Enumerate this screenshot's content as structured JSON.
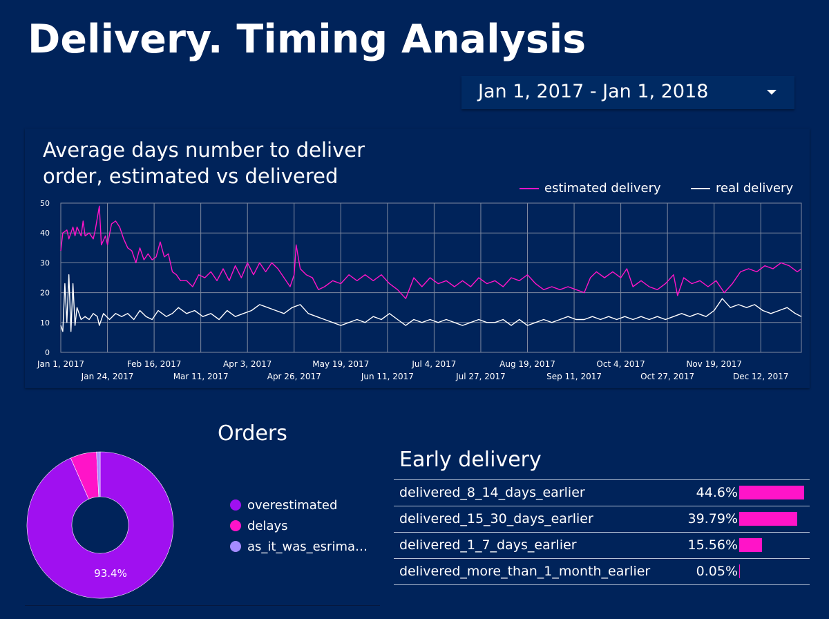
{
  "header": {
    "title": "Delivery. Timing Analysis"
  },
  "date_range": {
    "label": "Jan 1, 2017 - Jan 1, 2018"
  },
  "line_chart": {
    "title": "Average days number to deliver order, estimated vs delivered",
    "legend": [
      {
        "label": "estimated delivery",
        "color": "#ff14c8"
      },
      {
        "label": "real delivery",
        "color": "#ffffff"
      }
    ]
  },
  "pie_chart": {
    "title": "Orders",
    "center_label": "93.4%",
    "legend": [
      {
        "label": "overestimated",
        "color": "#a010f0"
      },
      {
        "label": "delays",
        "color": "#ff14c8"
      },
      {
        "label": "as_it_was_esrima…",
        "color": "#a58cff"
      }
    ]
  },
  "bar_table": {
    "title": "Early delivery",
    "rows": [
      {
        "label": "delivered_8_14_days_earlier",
        "value": "44.6%"
      },
      {
        "label": "delivered_15_30_days_earlier",
        "value": "39.79%"
      },
      {
        "label": "delivered_1_7_days_earlier",
        "value": "15.56%"
      },
      {
        "label": "delivered_more_than_1_month_earlier",
        "value": "0.05%"
      }
    ]
  },
  "chart_data": [
    {
      "type": "line",
      "title": "Average days number to deliver order, estimated vs delivered",
      "x_start": "2017-01-01",
      "x_end": "2018-01-01",
      "ylim": [
        0,
        50
      ],
      "yticks": [
        0,
        10,
        20,
        30,
        40,
        50
      ],
      "xticks": [
        "Jan 1, 2017",
        "Jan 24, 2017",
        "Feb 16, 2017",
        "Mar 11, 2017",
        "Apr 3, 2017",
        "Apr 26, 2017",
        "May 19, 2017",
        "Jun 11, 2017",
        "Jul 4, 2017",
        "Jul 27, 2017",
        "Aug 19, 2017",
        "Sep 11, 2017",
        "Oct 4, 2017",
        "Oct 27, 2017",
        "Nov 19, 2017",
        "Dec 12, 2017"
      ],
      "grid": true,
      "legend_position": "top-right",
      "series": [
        {
          "name": "estimated delivery",
          "color": "#ff14c8",
          "points": [
            [
              "2017-01-01",
              34
            ],
            [
              "2017-01-02",
              40
            ],
            [
              "2017-01-04",
              41
            ],
            [
              "2017-01-05",
              38
            ],
            [
              "2017-01-07",
              42
            ],
            [
              "2017-01-08",
              39
            ],
            [
              "2017-01-09",
              42
            ],
            [
              "2017-01-11",
              39
            ],
            [
              "2017-01-12",
              44
            ],
            [
              "2017-01-13",
              39
            ],
            [
              "2017-01-15",
              40
            ],
            [
              "2017-01-17",
              38
            ],
            [
              "2017-01-18",
              41
            ],
            [
              "2017-01-20",
              49
            ],
            [
              "2017-01-21",
              36
            ],
            [
              "2017-01-23",
              39
            ],
            [
              "2017-01-24",
              36
            ],
            [
              "2017-01-26",
              43
            ],
            [
              "2017-01-28",
              44
            ],
            [
              "2017-01-30",
              42
            ],
            [
              "2017-02-01",
              38
            ],
            [
              "2017-02-03",
              35
            ],
            [
              "2017-02-05",
              34
            ],
            [
              "2017-02-07",
              30
            ],
            [
              "2017-02-09",
              35
            ],
            [
              "2017-02-11",
              31
            ],
            [
              "2017-02-13",
              33
            ],
            [
              "2017-02-15",
              31
            ],
            [
              "2017-02-17",
              32
            ],
            [
              "2017-02-19",
              37
            ],
            [
              "2017-02-21",
              32
            ],
            [
              "2017-02-23",
              33
            ],
            [
              "2017-02-25",
              27
            ],
            [
              "2017-02-27",
              26
            ],
            [
              "2017-03-01",
              24
            ],
            [
              "2017-03-04",
              24
            ],
            [
              "2017-03-07",
              22
            ],
            [
              "2017-03-10",
              26
            ],
            [
              "2017-03-13",
              25
            ],
            [
              "2017-03-16",
              27
            ],
            [
              "2017-03-19",
              24
            ],
            [
              "2017-03-22",
              28
            ],
            [
              "2017-03-25",
              24
            ],
            [
              "2017-03-28",
              29
            ],
            [
              "2017-03-31",
              25
            ],
            [
              "2017-04-03",
              30
            ],
            [
              "2017-04-06",
              26
            ],
            [
              "2017-04-09",
              30
            ],
            [
              "2017-04-12",
              27
            ],
            [
              "2017-04-15",
              30
            ],
            [
              "2017-04-18",
              28
            ],
            [
              "2017-04-21",
              25
            ],
            [
              "2017-04-24",
              22
            ],
            [
              "2017-04-26",
              26
            ],
            [
              "2017-04-27",
              36
            ],
            [
              "2017-04-29",
              28
            ],
            [
              "2017-05-02",
              26
            ],
            [
              "2017-05-05",
              25
            ],
            [
              "2017-05-08",
              21
            ],
            [
              "2017-05-11",
              22
            ],
            [
              "2017-05-15",
              24
            ],
            [
              "2017-05-19",
              23
            ],
            [
              "2017-05-23",
              26
            ],
            [
              "2017-05-27",
              24
            ],
            [
              "2017-05-31",
              26
            ],
            [
              "2017-06-04",
              24
            ],
            [
              "2017-06-08",
              26
            ],
            [
              "2017-06-12",
              23
            ],
            [
              "2017-06-16",
              21
            ],
            [
              "2017-06-20",
              18
            ],
            [
              "2017-06-24",
              25
            ],
            [
              "2017-06-28",
              22
            ],
            [
              "2017-07-02",
              25
            ],
            [
              "2017-07-06",
              23
            ],
            [
              "2017-07-10",
              24
            ],
            [
              "2017-07-14",
              22
            ],
            [
              "2017-07-18",
              24
            ],
            [
              "2017-07-22",
              22
            ],
            [
              "2017-07-26",
              25
            ],
            [
              "2017-07-30",
              23
            ],
            [
              "2017-08-03",
              24
            ],
            [
              "2017-08-07",
              22
            ],
            [
              "2017-08-11",
              25
            ],
            [
              "2017-08-15",
              24
            ],
            [
              "2017-08-19",
              26
            ],
            [
              "2017-08-23",
              23
            ],
            [
              "2017-08-27",
              21
            ],
            [
              "2017-08-31",
              22
            ],
            [
              "2017-09-04",
              21
            ],
            [
              "2017-09-08",
              22
            ],
            [
              "2017-09-12",
              21
            ],
            [
              "2017-09-16",
              20
            ],
            [
              "2017-09-19",
              25
            ],
            [
              "2017-09-22",
              27
            ],
            [
              "2017-09-26",
              25
            ],
            [
              "2017-09-30",
              27
            ],
            [
              "2017-10-04",
              25
            ],
            [
              "2017-10-07",
              28
            ],
            [
              "2017-10-10",
              22
            ],
            [
              "2017-10-14",
              24
            ],
            [
              "2017-10-18",
              22
            ],
            [
              "2017-10-22",
              21
            ],
            [
              "2017-10-26",
              23
            ],
            [
              "2017-10-30",
              26
            ],
            [
              "2017-11-01",
              19
            ],
            [
              "2017-11-04",
              25
            ],
            [
              "2017-11-08",
              23
            ],
            [
              "2017-11-12",
              24
            ],
            [
              "2017-11-16",
              22
            ],
            [
              "2017-11-20",
              24
            ],
            [
              "2017-11-24",
              20
            ],
            [
              "2017-11-28",
              23
            ],
            [
              "2017-12-02",
              27
            ],
            [
              "2017-12-06",
              28
            ],
            [
              "2017-12-10",
              27
            ],
            [
              "2017-12-14",
              29
            ],
            [
              "2017-12-18",
              28
            ],
            [
              "2017-12-22",
              30
            ],
            [
              "2017-12-26",
              29
            ],
            [
              "2017-12-30",
              27
            ],
            [
              "2018-01-01",
              28
            ]
          ]
        },
        {
          "name": "real delivery",
          "color": "#ffffff",
          "points": [
            [
              "2017-01-01",
              9
            ],
            [
              "2017-01-02",
              7
            ],
            [
              "2017-01-03",
              23
            ],
            [
              "2017-01-04",
              10
            ],
            [
              "2017-01-05",
              26
            ],
            [
              "2017-01-06",
              7
            ],
            [
              "2017-01-07",
              23
            ],
            [
              "2017-01-08",
              9
            ],
            [
              "2017-01-09",
              15
            ],
            [
              "2017-01-11",
              11
            ],
            [
              "2017-01-13",
              12
            ],
            [
              "2017-01-15",
              11
            ],
            [
              "2017-01-17",
              13
            ],
            [
              "2017-01-19",
              12
            ],
            [
              "2017-01-20",
              9
            ],
            [
              "2017-01-22",
              13
            ],
            [
              "2017-01-25",
              11
            ],
            [
              "2017-01-28",
              13
            ],
            [
              "2017-01-31",
              12
            ],
            [
              "2017-02-03",
              13
            ],
            [
              "2017-02-06",
              11
            ],
            [
              "2017-02-09",
              14
            ],
            [
              "2017-02-12",
              12
            ],
            [
              "2017-02-15",
              11
            ],
            [
              "2017-02-18",
              14
            ],
            [
              "2017-02-22",
              12
            ],
            [
              "2017-02-25",
              13
            ],
            [
              "2017-02-28",
              15
            ],
            [
              "2017-03-04",
              13
            ],
            [
              "2017-03-08",
              14
            ],
            [
              "2017-03-12",
              12
            ],
            [
              "2017-03-16",
              13
            ],
            [
              "2017-03-20",
              11
            ],
            [
              "2017-03-24",
              14
            ],
            [
              "2017-03-28",
              12
            ],
            [
              "2017-04-01",
              13
            ],
            [
              "2017-04-05",
              14
            ],
            [
              "2017-04-09",
              16
            ],
            [
              "2017-04-13",
              15
            ],
            [
              "2017-04-17",
              14
            ],
            [
              "2017-04-21",
              13
            ],
            [
              "2017-04-25",
              15
            ],
            [
              "2017-04-29",
              16
            ],
            [
              "2017-05-03",
              13
            ],
            [
              "2017-05-07",
              12
            ],
            [
              "2017-05-11",
              11
            ],
            [
              "2017-05-15",
              10
            ],
            [
              "2017-05-19",
              9
            ],
            [
              "2017-05-23",
              10
            ],
            [
              "2017-05-27",
              11
            ],
            [
              "2017-05-31",
              10
            ],
            [
              "2017-06-04",
              12
            ],
            [
              "2017-06-08",
              11
            ],
            [
              "2017-06-12",
              13
            ],
            [
              "2017-06-16",
              11
            ],
            [
              "2017-06-20",
              9
            ],
            [
              "2017-06-24",
              11
            ],
            [
              "2017-06-28",
              10
            ],
            [
              "2017-07-02",
              11
            ],
            [
              "2017-07-06",
              10
            ],
            [
              "2017-07-10",
              11
            ],
            [
              "2017-07-14",
              10
            ],
            [
              "2017-07-18",
              9
            ],
            [
              "2017-07-22",
              10
            ],
            [
              "2017-07-26",
              11
            ],
            [
              "2017-07-30",
              10
            ],
            [
              "2017-08-03",
              10
            ],
            [
              "2017-08-07",
              11
            ],
            [
              "2017-08-11",
              9
            ],
            [
              "2017-08-15",
              11
            ],
            [
              "2017-08-19",
              9
            ],
            [
              "2017-08-23",
              10
            ],
            [
              "2017-08-27",
              11
            ],
            [
              "2017-08-31",
              10
            ],
            [
              "2017-09-04",
              11
            ],
            [
              "2017-09-08",
              12
            ],
            [
              "2017-09-12",
              11
            ],
            [
              "2017-09-16",
              11
            ],
            [
              "2017-09-20",
              12
            ],
            [
              "2017-09-24",
              11
            ],
            [
              "2017-09-28",
              12
            ],
            [
              "2017-10-02",
              11
            ],
            [
              "2017-10-06",
              12
            ],
            [
              "2017-10-10",
              11
            ],
            [
              "2017-10-14",
              12
            ],
            [
              "2017-10-18",
              11
            ],
            [
              "2017-10-22",
              12
            ],
            [
              "2017-10-26",
              11
            ],
            [
              "2017-10-30",
              12
            ],
            [
              "2017-11-03",
              13
            ],
            [
              "2017-11-07",
              12
            ],
            [
              "2017-11-11",
              13
            ],
            [
              "2017-11-15",
              12
            ],
            [
              "2017-11-19",
              14
            ],
            [
              "2017-11-23",
              18
            ],
            [
              "2017-11-27",
              15
            ],
            [
              "2017-12-01",
              16
            ],
            [
              "2017-12-05",
              15
            ],
            [
              "2017-12-09",
              16
            ],
            [
              "2017-12-13",
              14
            ],
            [
              "2017-12-17",
              13
            ],
            [
              "2017-12-21",
              14
            ],
            [
              "2017-12-25",
              15
            ],
            [
              "2017-12-29",
              13
            ],
            [
              "2018-01-01",
              12
            ]
          ]
        }
      ]
    },
    {
      "type": "pie",
      "title": "Orders",
      "donut": true,
      "categories": [
        "overestimated",
        "delays",
        "as_it_was_esrima…"
      ],
      "values": [
        93.4,
        5.8,
        0.8
      ],
      "colors": [
        "#a010f0",
        "#ff14c8",
        "#a58cff"
      ],
      "data_labels": [
        "93.4%",
        "",
        ""
      ],
      "legend_position": "right"
    },
    {
      "type": "bar",
      "title": "Early delivery",
      "categories": [
        "delivered_8_14_days_earlier",
        "delivered_15_30_days_earlier",
        "delivered_1_7_days_earlier",
        "delivered_more_than_1_month_earlier"
      ],
      "values": [
        44.6,
        39.79,
        15.56,
        0.05
      ],
      "value_labels": [
        "44.6%",
        "39.79%",
        "15.56%",
        "0.05%"
      ],
      "color": "#ff14c8",
      "orientation": "horizontal"
    }
  ]
}
